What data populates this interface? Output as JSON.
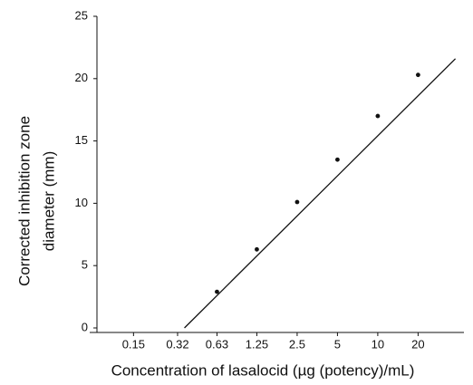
{
  "chart_data": {
    "type": "scatter",
    "xlabel": "Concentration of lasalocid (µg (potency)/mL)",
    "ylabel": [
      "Corrected inhibition zone",
      "diameter (mm)"
    ],
    "x": [
      0.63,
      1.25,
      2.5,
      5,
      10,
      20
    ],
    "values": [
      2.9,
      6.3,
      10.1,
      13.5,
      17.0,
      20.3
    ],
    "color": "#111111",
    "fit_line": {
      "x": [
        0.36,
        38
      ],
      "y": [
        0,
        21.6
      ]
    },
    "log_x": true,
    "xlim": [
      0.08,
      44
    ],
    "xticks": [
      0.15,
      0.32,
      0.63,
      1.25,
      2.5,
      5,
      10,
      20
    ],
    "ylim": [
      0,
      25
    ],
    "yticks": [
      0,
      5,
      10,
      15,
      20,
      25
    ]
  }
}
